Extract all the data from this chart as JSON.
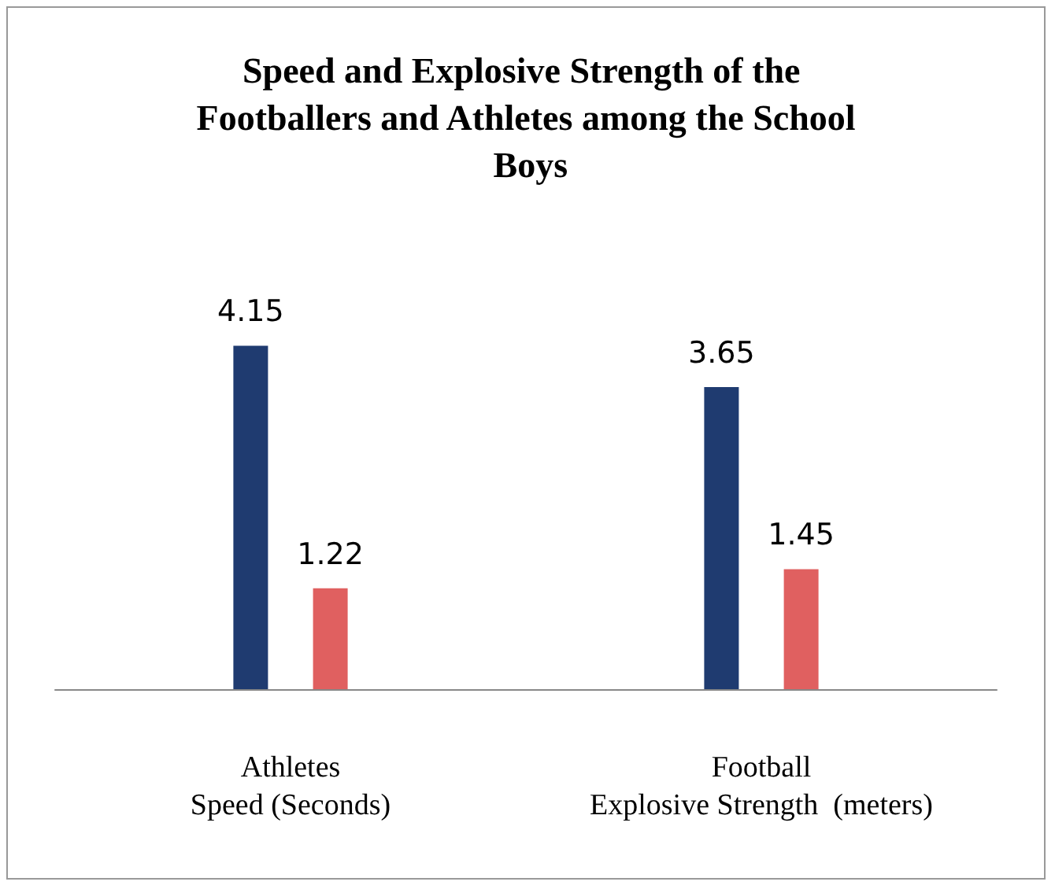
{
  "chart_data": {
    "type": "bar",
    "title": "Speed and Explosive Strength of the Footballers and Athletes among the School Boys",
    "categories": [
      "Athletes\nSpeed (Seconds)",
      "Football\nExplosive Strength  (meters)"
    ],
    "series": [
      {
        "color": "#1f3b70",
        "values": [
          4.15,
          3.65
        ]
      },
      {
        "color": "#e06060",
        "values": [
          1.22,
          1.45
        ]
      }
    ],
    "data_labels": true,
    "tick_labels": "x",
    "grid": false
  }
}
